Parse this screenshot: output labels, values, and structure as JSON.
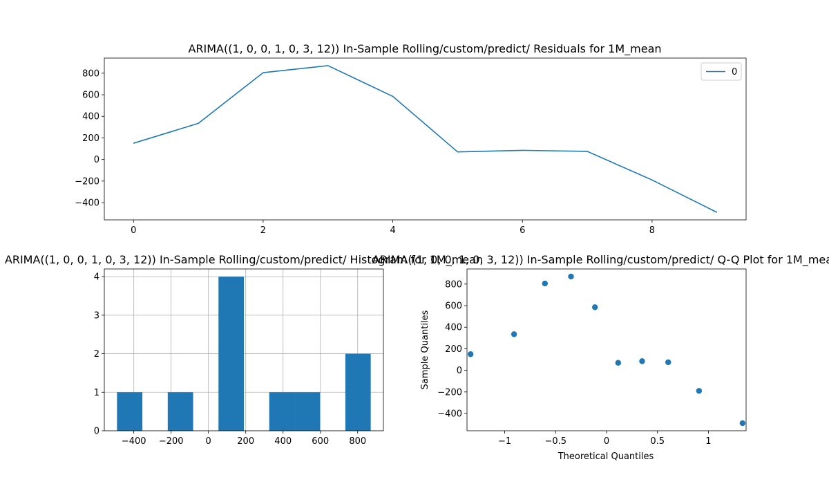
{
  "colors": {
    "series": "#1f77b4",
    "grid": "#b0b0b0",
    "axes": "#000000"
  },
  "chart_data": [
    {
      "type": "line",
      "title": "ARIMA((1, 0, 0, 1, 0, 3, 12)) In-Sample Rolling/custom/predict/ Residuals for 1M_mean",
      "x": [
        0,
        1,
        2,
        3,
        4,
        5,
        6,
        7,
        8,
        9
      ],
      "series": [
        {
          "name": "0",
          "values": [
            150,
            335,
            805,
            870,
            585,
            70,
            85,
            75,
            -190,
            -490
          ]
        }
      ],
      "xlim": [
        -0.45,
        9.45
      ],
      "ylim": [
        -560,
        940
      ],
      "xticks": [
        0,
        2,
        4,
        6,
        8
      ],
      "yticks": [
        -400,
        -200,
        0,
        200,
        400,
        600,
        800
      ],
      "legend": "top-right",
      "grid": false
    },
    {
      "type": "bar",
      "title": "ARIMA((1, 0, 0, 1, 0, 3, 12)) In-Sample Rolling/custom/predict/ Histogram for 1M_mean",
      "bins": [
        {
          "start": -490,
          "end": -354,
          "count": 1
        },
        {
          "start": -354,
          "end": -218,
          "count": 0
        },
        {
          "start": -218,
          "end": -82,
          "count": 1
        },
        {
          "start": -82,
          "end": 54,
          "count": 0
        },
        {
          "start": 54,
          "end": 190,
          "count": 4
        },
        {
          "start": 190,
          "end": 326,
          "count": 0
        },
        {
          "start": 326,
          "end": 462,
          "count": 1
        },
        {
          "start": 462,
          "end": 598,
          "count": 1
        },
        {
          "start": 598,
          "end": 734,
          "count": 0
        },
        {
          "start": 734,
          "end": 870,
          "count": 2
        }
      ],
      "xlim": [
        -558,
        938
      ],
      "ylim": [
        0,
        4.2
      ],
      "xticks": [
        -400,
        -200,
        0,
        200,
        400,
        600,
        800
      ],
      "yticks": [
        0,
        1,
        2,
        3,
        4
      ],
      "grid": true
    },
    {
      "type": "scatter",
      "title": "ARIMA((1, 0, 0, 1, 0, 3, 12)) In-Sample Rolling/custom/predict/ Q-Q Plot for 1M_mean",
      "xlabel": "Theoretical Quantiles",
      "ylabel": "Sample Quantiles",
      "x": [
        -1.335,
        -0.908,
        -0.605,
        -0.349,
        -0.114,
        0.114,
        0.349,
        0.605,
        0.908,
        1.335
      ],
      "y": [
        150,
        335,
        805,
        870,
        585,
        70,
        85,
        75,
        -190,
        -490
      ],
      "xlim": [
        -1.37,
        1.37
      ],
      "ylim": [
        -560,
        940
      ],
      "xticks": [
        -1.0,
        -0.5,
        0.0,
        0.5,
        1.0
      ],
      "yticks": [
        -400,
        -200,
        0,
        200,
        400,
        600,
        800
      ],
      "grid": false
    }
  ]
}
